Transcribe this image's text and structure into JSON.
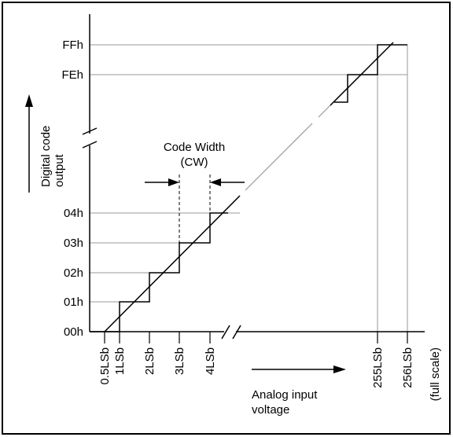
{
  "y_axis": {
    "title_line1": "Digital code",
    "title_line2": "output",
    "ticks": [
      "00h",
      "01h",
      "02h",
      "03h",
      "04h",
      "FEh",
      "FFh"
    ]
  },
  "x_axis": {
    "title_line1": "Analog input",
    "title_line2": "voltage",
    "ticks": [
      "0.5LSb",
      "1LSb",
      "2LSb",
      "3LSb",
      "4LSb",
      "255LSb",
      "256LSb",
      "(full scale)"
    ]
  },
  "annotation": {
    "line1": "Code Width",
    "line2": "(CW)"
  },
  "colors": {
    "frame": "#000000",
    "gridline": "#999999",
    "ideal_line": "#999999",
    "steps": "#000000"
  }
}
